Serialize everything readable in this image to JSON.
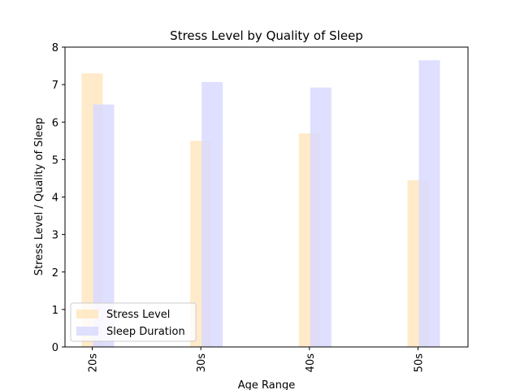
{
  "chart_data": {
    "type": "bar",
    "title": "Stress Level by Quality of Sleep",
    "xlabel": "Age Range",
    "ylabel": "Stress Level / Quality of Sleep",
    "categories": [
      "20s",
      "30s",
      "40s",
      "50s"
    ],
    "series": [
      {
        "name": "Stress Level",
        "values": [
          7.3,
          5.5,
          5.7,
          4.45
        ],
        "color": "#ffe6bf"
      },
      {
        "name": "Sleep Duration",
        "values": [
          6.47,
          7.07,
          6.92,
          7.65
        ],
        "color": "#d9d9ff"
      }
    ],
    "ylim": [
      0,
      8
    ],
    "yticks": [
      0,
      1,
      2,
      3,
      4,
      5,
      6,
      7,
      8
    ],
    "grid": false,
    "legend_position": "lower-left",
    "xtick_rotation": 90
  }
}
